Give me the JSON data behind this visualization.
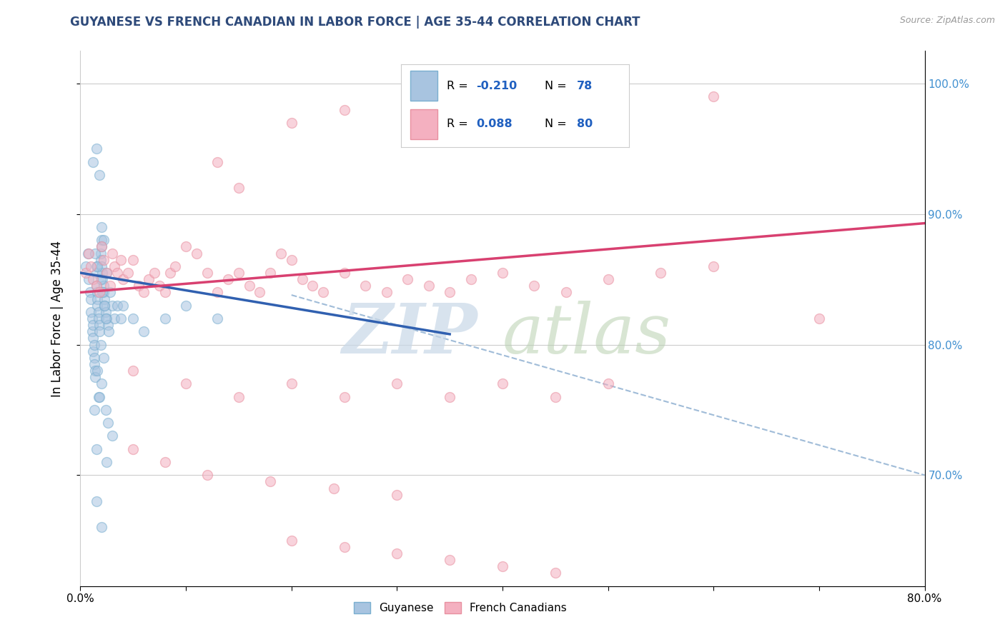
{
  "title": "GUYANESE VS FRENCH CANADIAN IN LABOR FORCE | AGE 35-44 CORRELATION CHART",
  "source": "Source: ZipAtlas.com",
  "ylabel_left": "In Labor Force | Age 35-44",
  "xlim": [
    0.0,
    0.8
  ],
  "ylim": [
    0.615,
    1.025
  ],
  "right_yticks": [
    0.7,
    0.8,
    0.9,
    1.0
  ],
  "right_yticklabels": [
    "70.0%",
    "80.0%",
    "90.0%",
    "100.0%"
  ],
  "blue_scatter_x": [
    0.005,
    0.007,
    0.008,
    0.009,
    0.01,
    0.01,
    0.011,
    0.011,
    0.012,
    0.012,
    0.012,
    0.013,
    0.013,
    0.013,
    0.014,
    0.014,
    0.015,
    0.015,
    0.015,
    0.016,
    0.016,
    0.016,
    0.017,
    0.017,
    0.018,
    0.018,
    0.019,
    0.019,
    0.02,
    0.02,
    0.02,
    0.021,
    0.021,
    0.022,
    0.022,
    0.023,
    0.023,
    0.024,
    0.025,
    0.025,
    0.026,
    0.027,
    0.028,
    0.03,
    0.032,
    0.035,
    0.038,
    0.04,
    0.05,
    0.06,
    0.08,
    0.1,
    0.13,
    0.015,
    0.012,
    0.018,
    0.02,
    0.022,
    0.014,
    0.016,
    0.019,
    0.021,
    0.023,
    0.024,
    0.017,
    0.013,
    0.025,
    0.015,
    0.019,
    0.022,
    0.016,
    0.02,
    0.018,
    0.024,
    0.026,
    0.03,
    0.015,
    0.02
  ],
  "blue_scatter_y": [
    0.86,
    0.87,
    0.85,
    0.84,
    0.835,
    0.825,
    0.82,
    0.81,
    0.815,
    0.805,
    0.795,
    0.8,
    0.79,
    0.785,
    0.78,
    0.775,
    0.86,
    0.855,
    0.845,
    0.84,
    0.835,
    0.83,
    0.825,
    0.82,
    0.815,
    0.81,
    0.87,
    0.865,
    0.88,
    0.875,
    0.86,
    0.855,
    0.85,
    0.845,
    0.84,
    0.835,
    0.83,
    0.825,
    0.855,
    0.82,
    0.815,
    0.81,
    0.84,
    0.83,
    0.82,
    0.83,
    0.82,
    0.83,
    0.82,
    0.81,
    0.82,
    0.83,
    0.82,
    0.95,
    0.94,
    0.93,
    0.89,
    0.88,
    0.87,
    0.86,
    0.85,
    0.84,
    0.83,
    0.82,
    0.76,
    0.75,
    0.71,
    0.72,
    0.8,
    0.79,
    0.78,
    0.77,
    0.76,
    0.75,
    0.74,
    0.73,
    0.68,
    0.66
  ],
  "pink_scatter_x": [
    0.005,
    0.008,
    0.01,
    0.012,
    0.015,
    0.018,
    0.02,
    0.022,
    0.025,
    0.028,
    0.03,
    0.032,
    0.035,
    0.038,
    0.04,
    0.045,
    0.05,
    0.055,
    0.06,
    0.065,
    0.07,
    0.075,
    0.08,
    0.085,
    0.09,
    0.1,
    0.11,
    0.12,
    0.13,
    0.14,
    0.15,
    0.16,
    0.17,
    0.18,
    0.19,
    0.2,
    0.21,
    0.22,
    0.23,
    0.25,
    0.27,
    0.29,
    0.31,
    0.33,
    0.35,
    0.37,
    0.4,
    0.43,
    0.46,
    0.5,
    0.55,
    0.6,
    0.13,
    0.15,
    0.2,
    0.25,
    0.6,
    0.7,
    0.05,
    0.1,
    0.15,
    0.2,
    0.25,
    0.3,
    0.35,
    0.4,
    0.45,
    0.5,
    0.05,
    0.08,
    0.12,
    0.18,
    0.24,
    0.3,
    0.2,
    0.25,
    0.3,
    0.35,
    0.4,
    0.45
  ],
  "pink_scatter_y": [
    0.855,
    0.87,
    0.86,
    0.85,
    0.845,
    0.84,
    0.875,
    0.865,
    0.855,
    0.845,
    0.87,
    0.86,
    0.855,
    0.865,
    0.85,
    0.855,
    0.865,
    0.845,
    0.84,
    0.85,
    0.855,
    0.845,
    0.84,
    0.855,
    0.86,
    0.875,
    0.87,
    0.855,
    0.84,
    0.85,
    0.855,
    0.845,
    0.84,
    0.855,
    0.87,
    0.865,
    0.85,
    0.845,
    0.84,
    0.855,
    0.845,
    0.84,
    0.85,
    0.845,
    0.84,
    0.85,
    0.855,
    0.845,
    0.84,
    0.85,
    0.855,
    0.86,
    0.94,
    0.92,
    0.97,
    0.98,
    0.99,
    0.82,
    0.78,
    0.77,
    0.76,
    0.77,
    0.76,
    0.77,
    0.76,
    0.77,
    0.76,
    0.77,
    0.72,
    0.71,
    0.7,
    0.695,
    0.69,
    0.685,
    0.65,
    0.645,
    0.64,
    0.635,
    0.63,
    0.625
  ],
  "blue_line_x": [
    0.0,
    0.35
  ],
  "blue_line_y": [
    0.855,
    0.808
  ],
  "pink_line_x": [
    0.0,
    0.8
  ],
  "pink_line_y": [
    0.84,
    0.893
  ],
  "dashed_line_x": [
    0.2,
    0.8
  ],
  "dashed_line_y": [
    0.838,
    0.7
  ],
  "title_color": "#2e4a7a",
  "blue_color": "#a8c4e0",
  "blue_edge_color": "#7aafd0",
  "pink_color": "#f4b0c0",
  "pink_edge_color": "#e890a0",
  "blue_line_color": "#3060b0",
  "pink_line_color": "#d84070",
  "dashed_line_color": "#a0bcd8",
  "source_color": "#999999",
  "legend_R_color": "#2060c0",
  "right_tick_color": "#4090d0",
  "scatter_size": 100,
  "scatter_alpha": 0.55,
  "scatter_linewidth": 1.0
}
